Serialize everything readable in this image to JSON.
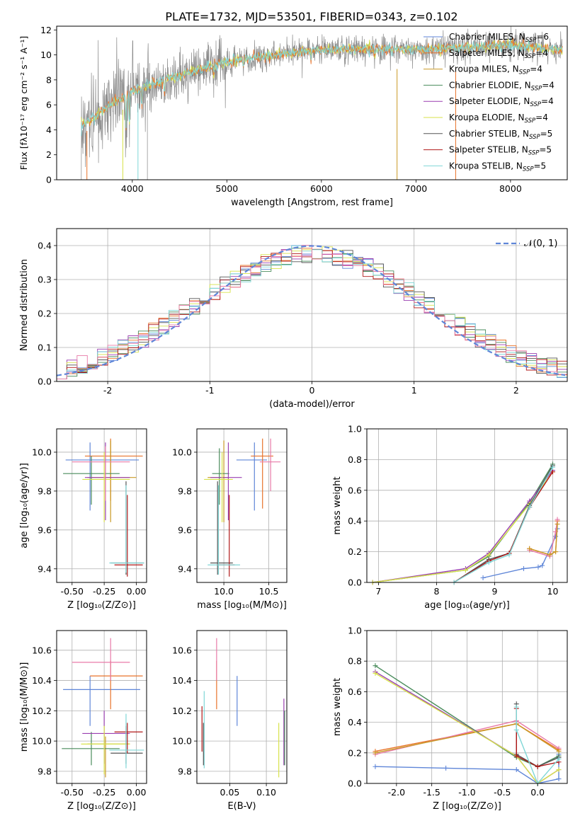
{
  "title": "PLATE=1732, MJD=53501, FIBERID=0343, z=0.102",
  "colors": {
    "Chabrier MILES": "#5f86d8",
    "Salpeter MILES": "#e8732a",
    "Kroupa MILES": "#c99a25",
    "Chabrier ELODIE": "#4a8c5c",
    "Salpeter ELODIE": "#9a3fb0",
    "Kroupa ELODIE": "#d7e24a",
    "Chabrier STELIB": "#555555",
    "Salpeter STELIB": "#b01818",
    "Kroupa STELIB": "#7fd6d6",
    "pink": "#e87aa8",
    "grid": "#b0b0b0",
    "data": "#8a8a8a"
  },
  "chart_data": [
    {
      "id": "spectrum",
      "type": "line",
      "xlabel": "wavelength [Angstrom, rest frame]",
      "ylabel": "Flux [fλ10⁻¹⁷ erg cm⁻² s⁻¹ A⁻¹]",
      "xlim": [
        3200,
        8600
      ],
      "ylim": [
        0,
        12.3
      ],
      "xticks": [
        4000,
        5000,
        6000,
        7000,
        8000
      ],
      "yticks": [
        0,
        2,
        4,
        6,
        8,
        10,
        12
      ],
      "continuum": {
        "x": [
          3460,
          3600,
          3800,
          4000,
          4200,
          4500,
          4800,
          5000,
          5200,
          5500,
          6000,
          6500,
          7000,
          7500,
          8000,
          8500
        ],
        "y": [
          4.3,
          5.0,
          6.2,
          7.0,
          7.6,
          8.4,
          9.0,
          9.4,
          9.7,
          10.0,
          10.4,
          10.5,
          10.4,
          10.6,
          10.8,
          10.4
        ]
      },
      "range": [
        3460,
        8550
      ],
      "legend": [
        "Chabrier MILES, Nₛₛₚ=6",
        "Salpeter MILES, Nₛₛₚ=4",
        "Kroupa MILES, Nₛₛₚ=4",
        "Chabrier ELODIE, Nₛₛₚ=4",
        "Salpeter ELODIE, Nₛₛₚ=4",
        "Kroupa ELODIE, Nₛₛₚ=4",
        "Chabrier STELIB, Nₛₛₚ=5",
        "Salpeter STELIB, Nₛₛₚ=5",
        "Kroupa STELIB, Nₛₛₚ=5"
      ],
      "legend_display": [
        {
          "name": "Chabrier MILES, N",
          "sub": "SSP",
          "tail": "=6"
        },
        {
          "name": "Salpeter MILES, N",
          "sub": "SSP",
          "tail": "=4"
        },
        {
          "name": "Kroupa MILES, N",
          "sub": "SSP",
          "tail": "=4"
        },
        {
          "name": "Chabrier ELODIE, N",
          "sub": "SSP",
          "tail": "=4"
        },
        {
          "name": "Salpeter ELODIE, N",
          "sub": "SSP",
          "tail": "=4"
        },
        {
          "name": "Kroupa ELODIE, N",
          "sub": "SSP",
          "tail": "=4"
        },
        {
          "name": "Chabrier STELIB, N",
          "sub": "SSP",
          "tail": "=5"
        },
        {
          "name": "Salpeter STELIB, N",
          "sub": "SSP",
          "tail": "=5"
        },
        {
          "name": "Kroupa STELIB, N",
          "sub": "SSP",
          "tail": "=5"
        }
      ],
      "legend_placement": "right"
    },
    {
      "id": "residuals",
      "type": "histogram",
      "xlabel": "(data-model)/error",
      "ylabel": "Normed distribution",
      "xlim": [
        -2.5,
        2.5
      ],
      "ylim": [
        0,
        0.45
      ],
      "xticks": [
        -2,
        -1,
        0,
        1,
        2
      ],
      "yticks": [
        0.0,
        0.1,
        0.2,
        0.3,
        0.4
      ],
      "bin_width": 0.1,
      "legend": "N(0, 1)",
      "legend_placement": "top-right",
      "grid": true
    },
    {
      "id": "age-vs-Z",
      "type": "errorbar",
      "xlabel": "Z [log₁₀(Z/Z⊙)]",
      "ylabel": "age  [log₁₀(age/yr)]",
      "xlim": [
        -0.62,
        0.08
      ],
      "ylim": [
        9.33,
        10.12
      ],
      "xticks": [
        -0.5,
        -0.25,
        0.0
      ],
      "yticks": [
        9.4,
        9.6,
        9.8,
        10.0
      ],
      "points": [
        {
          "c": "Chabrier MILES",
          "x": -0.36,
          "y": 9.96,
          "xe": [
            -0.55,
            0.02
          ],
          "ye": [
            9.7,
            10.05
          ]
        },
        {
          "c": "Salpeter MILES",
          "x": -0.2,
          "y": 9.98,
          "xe": [
            -0.4,
            0.05
          ],
          "ye": [
            9.75,
            10.07
          ]
        },
        {
          "c": "Kroupa MILES",
          "x": -0.2,
          "y": 9.87,
          "xe": [
            -0.38,
            0.0
          ],
          "ye": [
            9.64,
            10.06
          ]
        },
        {
          "c": "Chabrier ELODIE",
          "x": -0.35,
          "y": 9.89,
          "xe": [
            -0.57,
            -0.13
          ],
          "ye": [
            9.73,
            9.98
          ]
        },
        {
          "c": "Salpeter ELODIE",
          "x": -0.24,
          "y": 9.87,
          "xe": [
            -0.4,
            -0.05
          ],
          "ye": [
            9.65,
            10.05
          ]
        },
        {
          "c": "Kroupa ELODIE",
          "x": -0.25,
          "y": 9.86,
          "xe": [
            -0.42,
            -0.05
          ],
          "ye": [
            9.64,
            10.0
          ]
        },
        {
          "c": "Chabrier STELIB",
          "x": -0.08,
          "y": 9.43,
          "xe": [
            -0.2,
            0.06
          ],
          "ye": [
            9.37,
            9.85
          ]
        },
        {
          "c": "Salpeter STELIB",
          "x": -0.07,
          "y": 9.42,
          "xe": [
            -0.17,
            0.05
          ],
          "ye": [
            9.36,
            9.78
          ]
        },
        {
          "c": "Kroupa STELIB",
          "x": -0.08,
          "y": 9.43,
          "xe": [
            -0.21,
            0.06
          ],
          "ye": [
            9.38,
            9.83
          ]
        },
        {
          "c": "pink",
          "x": -0.24,
          "y": 9.95,
          "xe": [
            -0.5,
            -0.05
          ],
          "ye": [
            9.75,
            10.03
          ]
        }
      ],
      "grid": true
    },
    {
      "id": "age-vs-mass",
      "type": "errorbar",
      "xlabel": "mass [log₁₀(M/M⊙)]",
      "ylabel": "",
      "xlim": [
        9.7,
        10.7
      ],
      "ylim": [
        9.33,
        10.12
      ],
      "xticks": [
        10.0,
        10.5
      ],
      "yticks": [
        9.4,
        9.6,
        9.8,
        10.0
      ],
      "points": [
        {
          "c": "Chabrier MILES",
          "x": 10.34,
          "y": 9.96,
          "xe": [
            10.14,
            10.48
          ],
          "ye": [
            9.7,
            10.05
          ]
        },
        {
          "c": "Salpeter MILES",
          "x": 10.43,
          "y": 9.98,
          "xe": [
            10.3,
            10.55
          ],
          "ye": [
            9.71,
            10.07
          ]
        },
        {
          "c": "Kroupa MILES",
          "x": 10.0,
          "y": 9.87,
          "xe": [
            9.82,
            10.05
          ],
          "ye": [
            9.64,
            10.06
          ]
        },
        {
          "c": "Chabrier ELODIE",
          "x": 9.95,
          "y": 9.89,
          "xe": [
            9.87,
            10.06
          ],
          "ye": [
            9.73,
            10.02
          ]
        },
        {
          "c": "Salpeter ELODIE",
          "x": 10.05,
          "y": 9.87,
          "xe": [
            9.85,
            10.2
          ],
          "ye": [
            9.65,
            10.05
          ]
        },
        {
          "c": "Kroupa ELODIE",
          "x": 9.98,
          "y": 9.86,
          "xe": [
            9.78,
            10.1
          ],
          "ye": [
            9.64,
            10.0
          ]
        },
        {
          "c": "Chabrier STELIB",
          "x": 9.93,
          "y": 9.43,
          "xe": [
            9.85,
            10.1
          ],
          "ye": [
            9.37,
            9.85
          ]
        },
        {
          "c": "Salpeter STELIB",
          "x": 10.06,
          "y": 9.42,
          "xe": [
            9.92,
            10.12
          ],
          "ye": [
            9.36,
            9.78
          ]
        },
        {
          "c": "Kroupa STELIB",
          "x": 9.94,
          "y": 9.42,
          "xe": [
            9.82,
            10.18
          ],
          "ye": [
            9.37,
            9.83
          ]
        },
        {
          "c": "pink",
          "x": 10.52,
          "y": 9.95,
          "xe": [
            10.4,
            10.63
          ],
          "ye": [
            9.8,
            10.07
          ]
        }
      ],
      "grid": true
    },
    {
      "id": "weight-vs-age",
      "type": "line",
      "xlabel": "age  [log₁₀(age/yr)]",
      "ylabel": "mass weight",
      "xlim": [
        6.8,
        10.25
      ],
      "ylim": [
        0,
        1.0
      ],
      "xticks": [
        7,
        8,
        9,
        10
      ],
      "yticks": [
        0.0,
        0.2,
        0.4,
        0.6,
        0.8,
        1.0
      ],
      "series": [
        {
          "c": "Chabrier MILES",
          "x": [
            8.8,
            9.5,
            9.75,
            9.82,
            10.05,
            10.08
          ],
          "y": [
            0.03,
            0.09,
            0.1,
            0.11,
            0.3,
            0.35
          ]
        },
        {
          "c": "Salpeter MILES",
          "x": [
            9.6,
            9.95,
            10.05,
            10.08
          ],
          "y": [
            0.22,
            0.18,
            0.2,
            0.4
          ]
        },
        {
          "c": "pink",
          "x": [
            9.6,
            9.95,
            10.05,
            10.08
          ],
          "y": [
            0.21,
            0.17,
            0.33,
            0.41
          ]
        },
        {
          "c": "Kroupa MILES",
          "x": [
            9.6,
            9.95,
            10.05,
            10.08
          ],
          "y": [
            0.22,
            0.18,
            0.2,
            0.38
          ]
        },
        {
          "c": "Chabrier ELODIE",
          "x": [
            6.9,
            8.5,
            8.9,
            9.6,
            10.0
          ],
          "y": [
            0.0,
            0.08,
            0.17,
            0.52,
            0.77
          ]
        },
        {
          "c": "Salpeter ELODIE",
          "x": [
            6.9,
            8.5,
            8.9,
            9.6,
            10.0
          ],
          "y": [
            0.0,
            0.09,
            0.19,
            0.53,
            0.73
          ]
        },
        {
          "c": "Kroupa ELODIE",
          "x": [
            6.9,
            8.5,
            8.9,
            9.6,
            10.0
          ],
          "y": [
            0.0,
            0.08,
            0.18,
            0.51,
            0.72
          ]
        },
        {
          "c": "Chabrier STELIB",
          "x": [
            8.3,
            8.9,
            9.25,
            9.6,
            10.0
          ],
          "y": [
            0.0,
            0.15,
            0.19,
            0.5,
            0.76
          ]
        },
        {
          "c": "Salpeter STELIB",
          "x": [
            8.3,
            8.9,
            9.25,
            9.6,
            10.0
          ],
          "y": [
            0.0,
            0.14,
            0.19,
            0.49,
            0.72
          ]
        },
        {
          "c": "Kroupa STELIB",
          "x": [
            8.3,
            8.9,
            9.25,
            9.6,
            10.0
          ],
          "y": [
            0.0,
            0.13,
            0.18,
            0.49,
            0.75
          ]
        }
      ],
      "grid": true
    },
    {
      "id": "mass-vs-Z",
      "type": "errorbar",
      "xlabel": "Z [log₁₀(Z/Z⊙)]",
      "ylabel": "mass [log₁₀(M/M⊙)]",
      "xlim": [
        -0.62,
        0.08
      ],
      "ylim": [
        9.72,
        10.73
      ],
      "xticks": [
        -0.5,
        -0.25,
        0.0
      ],
      "yticks": [
        9.8,
        10.0,
        10.2,
        10.4,
        10.6
      ],
      "points": [
        {
          "c": "Chabrier MILES",
          "x": -0.36,
          "y": 10.34,
          "xe": [
            -0.57,
            0.03
          ],
          "ye": [
            10.1,
            10.43
          ]
        },
        {
          "c": "Salpeter MILES",
          "x": -0.2,
          "y": 10.43,
          "xe": [
            -0.36,
            0.05
          ],
          "ye": [
            10.21,
            10.53
          ]
        },
        {
          "c": "Kroupa MILES",
          "x": -0.24,
          "y": 9.98,
          "xe": [
            -0.38,
            -0.05
          ],
          "ye": [
            9.76,
            10.03
          ]
        },
        {
          "c": "Chabrier ELODIE",
          "x": -0.35,
          "y": 9.95,
          "xe": [
            -0.58,
            -0.13
          ],
          "ye": [
            9.84,
            10.06
          ]
        },
        {
          "c": "Salpeter ELODIE",
          "x": -0.25,
          "y": 10.05,
          "xe": [
            -0.42,
            -0.05
          ],
          "ye": [
            9.85,
            10.2
          ]
        },
        {
          "c": "Kroupa ELODIE",
          "x": -0.25,
          "y": 9.98,
          "xe": [
            -0.43,
            -0.05
          ],
          "ye": [
            9.78,
            10.1
          ]
        },
        {
          "c": "Chabrier STELIB",
          "x": -0.08,
          "y": 9.92,
          "xe": [
            -0.2,
            0.05
          ],
          "ye": [
            9.85,
            10.1
          ]
        },
        {
          "c": "Salpeter STELIB",
          "x": -0.07,
          "y": 10.06,
          "xe": [
            -0.17,
            0.05
          ],
          "ye": [
            9.92,
            10.12
          ]
        },
        {
          "c": "Kroupa STELIB",
          "x": -0.08,
          "y": 9.94,
          "xe": [
            -0.21,
            0.06
          ],
          "ye": [
            9.82,
            10.18
          ]
        },
        {
          "c": "pink",
          "x": -0.2,
          "y": 10.52,
          "xe": [
            -0.5,
            -0.05
          ],
          "ye": [
            10.4,
            10.68
          ]
        }
      ],
      "grid": true
    },
    {
      "id": "mass-vs-ebv",
      "type": "errorbar",
      "xlabel": "E(B-V)",
      "ylabel": "",
      "xlim": [
        0.005,
        0.128
      ],
      "ylim": [
        9.72,
        10.73
      ],
      "xticks": [
        0.05,
        0.1
      ],
      "yticks": [
        9.8,
        10.0,
        10.2,
        10.4,
        10.6
      ],
      "points": [
        {
          "c": "Chabrier MILES",
          "x": 0.06,
          "y": 10.34,
          "ye": [
            10.1,
            10.43
          ]
        },
        {
          "c": "Salpeter MILES",
          "x": 0.032,
          "y": 10.43,
          "ye": [
            10.21,
            10.53
          ]
        },
        {
          "c": "pink",
          "x": 0.032,
          "y": 10.52,
          "ye": [
            10.4,
            10.68
          ]
        },
        {
          "c": "Salpeter STELIB",
          "x": 0.012,
          "y": 10.06,
          "ye": [
            9.93,
            10.23
          ]
        },
        {
          "c": "Kroupa STELIB",
          "x": 0.015,
          "y": 10.0,
          "ye": [
            9.82,
            10.33
          ]
        },
        {
          "c": "Chabrier STELIB",
          "x": 0.014,
          "y": 9.98,
          "ye": [
            9.84,
            10.12
          ]
        },
        {
          "c": "Kroupa ELODIE",
          "x": 0.117,
          "y": 9.94,
          "ye": [
            9.76,
            10.12
          ]
        },
        {
          "c": "Salpeter ELODIE",
          "x": 0.124,
          "y": 10.05,
          "ye": [
            9.84,
            10.28
          ]
        },
        {
          "c": "Chabrier ELODIE",
          "x": 0.125,
          "y": 9.98,
          "ye": [
            9.84,
            10.2
          ]
        }
      ],
      "grid": true
    },
    {
      "id": "weight-vs-Z",
      "type": "line",
      "xlabel": "Z [log₁₀(Z/Z⊙)]",
      "ylabel": "mass weight",
      "xlim": [
        -2.42,
        0.42
      ],
      "ylim": [
        0,
        1.0
      ],
      "xticks": [
        -2.0,
        -1.5,
        -1.0,
        -0.5,
        0.0
      ],
      "yticks": [
        0.0,
        0.2,
        0.4,
        0.6,
        0.8,
        1.0
      ],
      "series": [
        {
          "c": "Chabrier MILES",
          "x": [
            -2.3,
            -1.3,
            -0.3,
            0.0,
            0.3,
            0.3
          ],
          "y": [
            0.11,
            0.1,
            0.09,
            0.0,
            0.03,
            0.19
          ]
        },
        {
          "c": "Salpeter MILES",
          "x": [
            -2.3,
            -0.3,
            0.3
          ],
          "y": [
            0.21,
            0.39,
            0.22
          ]
        },
        {
          "c": "pink",
          "x": [
            -2.3,
            -0.3,
            0.3
          ],
          "y": [
            0.19,
            0.41,
            0.23
          ]
        },
        {
          "c": "Kroupa MILES",
          "x": [
            -2.3,
            -0.3,
            0.3
          ],
          "y": [
            0.2,
            0.39,
            0.21
          ]
        },
        {
          "c": "Chabrier ELODIE",
          "x": [
            -2.3,
            -0.3,
            0.0,
            0.3
          ],
          "y": [
            0.77,
            0.17,
            0.11,
            0.18
          ]
        },
        {
          "c": "Salpeter ELODIE",
          "x": [
            -2.3,
            -0.3,
            0.0,
            0.3
          ],
          "y": [
            0.73,
            0.18,
            0.0,
            0.09
          ]
        },
        {
          "c": "Kroupa ELODIE",
          "x": [
            -2.3,
            -0.3,
            0.0,
            0.3
          ],
          "y": [
            0.72,
            0.18,
            0.0,
            0.09
          ]
        },
        {
          "c": "Chabrier STELIB",
          "x": [
            -0.3,
            -0.3,
            0.0,
            0.3
          ],
          "y": [
            0.52,
            0.19,
            0.11,
            0.17
          ]
        },
        {
          "c": "Salpeter STELIB",
          "x": [
            -0.3,
            -0.3,
            0.0,
            0.3
          ],
          "y": [
            0.49,
            0.18,
            0.11,
            0.14
          ]
        },
        {
          "c": "Kroupa STELIB",
          "x": [
            -0.3,
            -0.3,
            0.0,
            0.3
          ],
          "y": [
            0.5,
            0.35,
            0.0,
            0.16
          ]
        }
      ],
      "grid": true
    }
  ]
}
